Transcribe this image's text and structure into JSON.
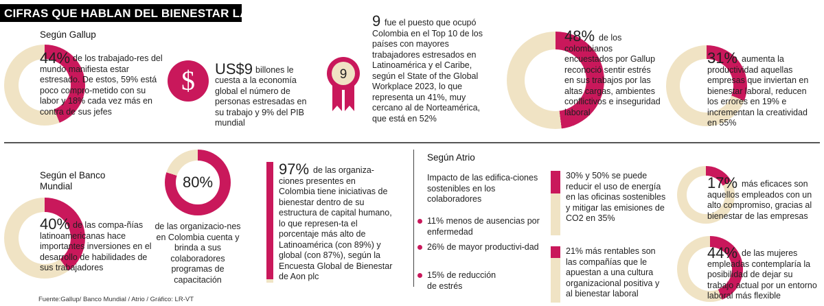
{
  "title": "CIFRAS QUE HABLAN DEL BIENESTAR LABORAL",
  "colors": {
    "accent": "#c9185b",
    "beige": "#f0e3c4",
    "title_bg": "#000000"
  },
  "gallup": {
    "heading": "Según Gallup",
    "stat1": {
      "pct": "44%",
      "value": 0.44,
      "text": "de los trabajado-res del mundo manifiesta estar estresado. De estos, 59% está poco compro-metido con su labor y 18% cada vez más en contra de sus jefes"
    },
    "stat2": {
      "amount": "US$9",
      "icon": "dollar-sign-icon",
      "text1": "billones le",
      "text2": "cuesta a la economía global el número de personas estresadas en su trabajo y 9% del PIB mundial"
    },
    "stat3": {
      "rank": "9",
      "icon": "ribbon-medal-icon",
      "text": "fue el puesto que ocupó Colombia en el Top 10 de los países con mayores trabajadores estresados en Latinoamérica y el Caribe, según el State of the Global Workplace 2023, lo que representa un 41%, muy cercano al de Norteamérica, que está en 52%"
    },
    "stat4": {
      "pct": "48%",
      "value": 0.48,
      "text": "de los colombianos encuestados por Gallup reconoció sentir estrés en sus trabajos por las altas cargas, ambientes conflictivos e inseguridad laboral"
    },
    "stat5": {
      "pct": "31%",
      "value": 0.31,
      "text": "aumenta la productividad aquellas empresas que inviertan en bienestar laboral, reducen los errores en 19% e incrementan la creatividad en 55%"
    }
  },
  "banco": {
    "heading": "Según el Banco Mundial",
    "stat1": {
      "pct": "40%",
      "value": 0.4,
      "text": "de las compa-ñías latinoamericanas hace importantes inversiones en el desarrollo de habilidades de sus trabajadores"
    },
    "stat2": {
      "pct": "80%",
      "value": 0.8,
      "text": "de las organizacio-nes en Colombia cuenta y brinda a sus colaboradores programas de capacitación"
    }
  },
  "aon": {
    "pct": "97%",
    "value": 0.97,
    "text": "de las organiza-ciones presentes en Colombia tiene iniciativas de bienestar dentro de su estructura de capital humano, lo que represen-ta el porcentaje más alto de Latinoamérica (con 89%) y global (con 87%), según la Encuesta Global de Bienestar de Aon plc"
  },
  "atrio": {
    "heading": "Según Atrio",
    "subheading": "Impacto de las edifica-ciones sostenibles en los colaboradores",
    "bullets": [
      {
        "strong": "11%",
        "text": "menos de ausencias por enfermedad"
      },
      {
        "strong": "26%",
        "text": "de mayor productivi-dad"
      },
      {
        "strong": "15%",
        "text": "de reducción de estrés"
      }
    ],
    "bar1": {
      "value": 0.35,
      "text": "30% y 50% se puede reducir el uso de energía en las oficinas sostenibles y mitigar las emisiones de CO2 en 35%"
    },
    "bar2": {
      "value": 0.21,
      "text": "21% más rentables son las compañías que le apuestan a una cultura organizacional positiva y al bienestar laboral"
    }
  },
  "right_bottom": {
    "stat1": {
      "pct": "17%",
      "value": 0.17,
      "text": "más eficaces son aquellos empleados con un alto compromiso, gracias al bienestar de las empresas"
    },
    "stat2": {
      "pct": "44%",
      "value": 0.44,
      "text": "de las mujeres empleadas contemplaría la posibilidad de dejar su trabajo actual por un entorno laboral más flexible"
    }
  },
  "source": "Fuente:Gallup/ Banco Mundial / Atrio / Gráfico: LR-VT"
}
